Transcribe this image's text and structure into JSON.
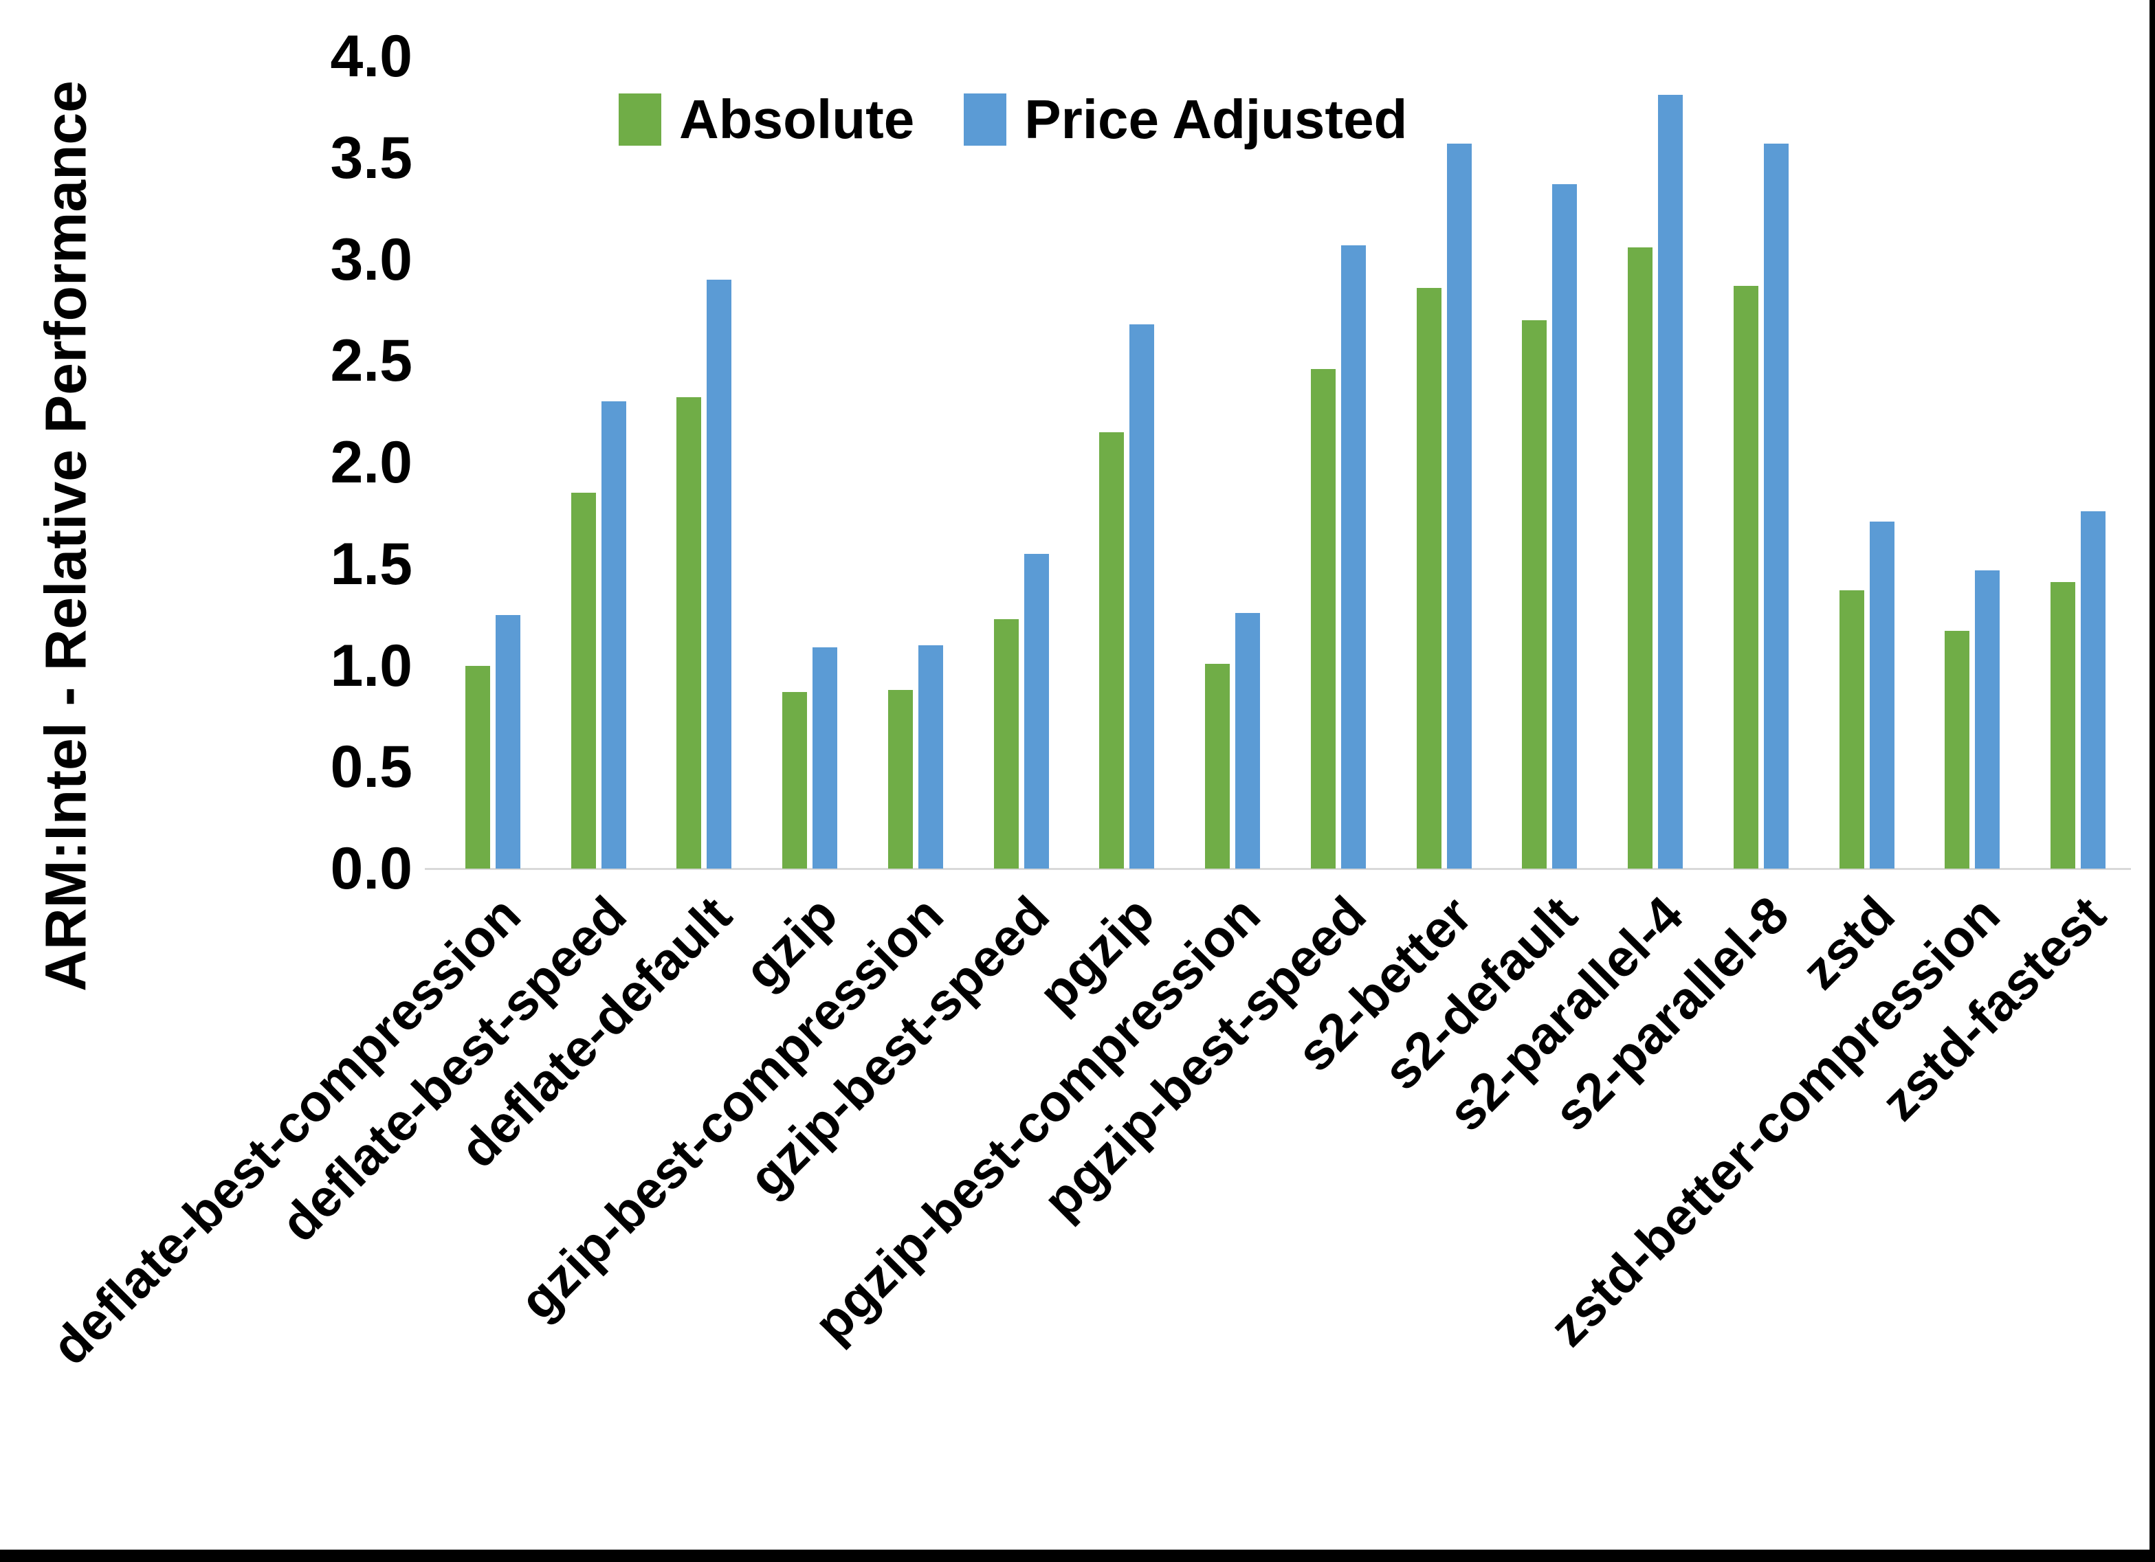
{
  "chart_data": {
    "type": "bar",
    "title": "",
    "xlabel": "",
    "ylabel": "ARM:Intel - Relative Performance",
    "ylim": [
      0.0,
      4.0
    ],
    "yticks": [
      "0.0",
      "0.5",
      "1.0",
      "1.5",
      "2.0",
      "2.5",
      "3.0",
      "3.5",
      "4.0"
    ],
    "grid": false,
    "legend_position": "top-left-inside",
    "categories": [
      "deflate-best-compression",
      "deflate-best-speed",
      "deflate-default",
      "gzip",
      "gzip-best-compression",
      "gzip-best-speed",
      "pgzip",
      "pgzip-best-compression",
      "pgzip-best-speed",
      "s2-better",
      "s2-default",
      "s2-parallel-4",
      "s2-parallel-8",
      "zstd",
      "zstd-better-compression",
      "zstd-fastest"
    ],
    "series": [
      {
        "name": "Absolute",
        "color": "#70AD47",
        "values": [
          1.0,
          1.85,
          2.32,
          0.87,
          0.88,
          1.23,
          2.15,
          1.01,
          2.46,
          2.86,
          2.7,
          3.06,
          2.87,
          1.37,
          1.17,
          1.41
        ]
      },
      {
        "name": "Price Adjusted",
        "color": "#5B9BD5",
        "values": [
          1.25,
          2.3,
          2.9,
          1.09,
          1.1,
          1.55,
          2.68,
          1.26,
          3.07,
          3.57,
          3.37,
          3.81,
          3.57,
          1.71,
          1.47,
          1.76
        ]
      }
    ]
  },
  "colors": {
    "axis_line": "#D9D9D9",
    "text": "#000000",
    "frame_border": "#000000"
  }
}
